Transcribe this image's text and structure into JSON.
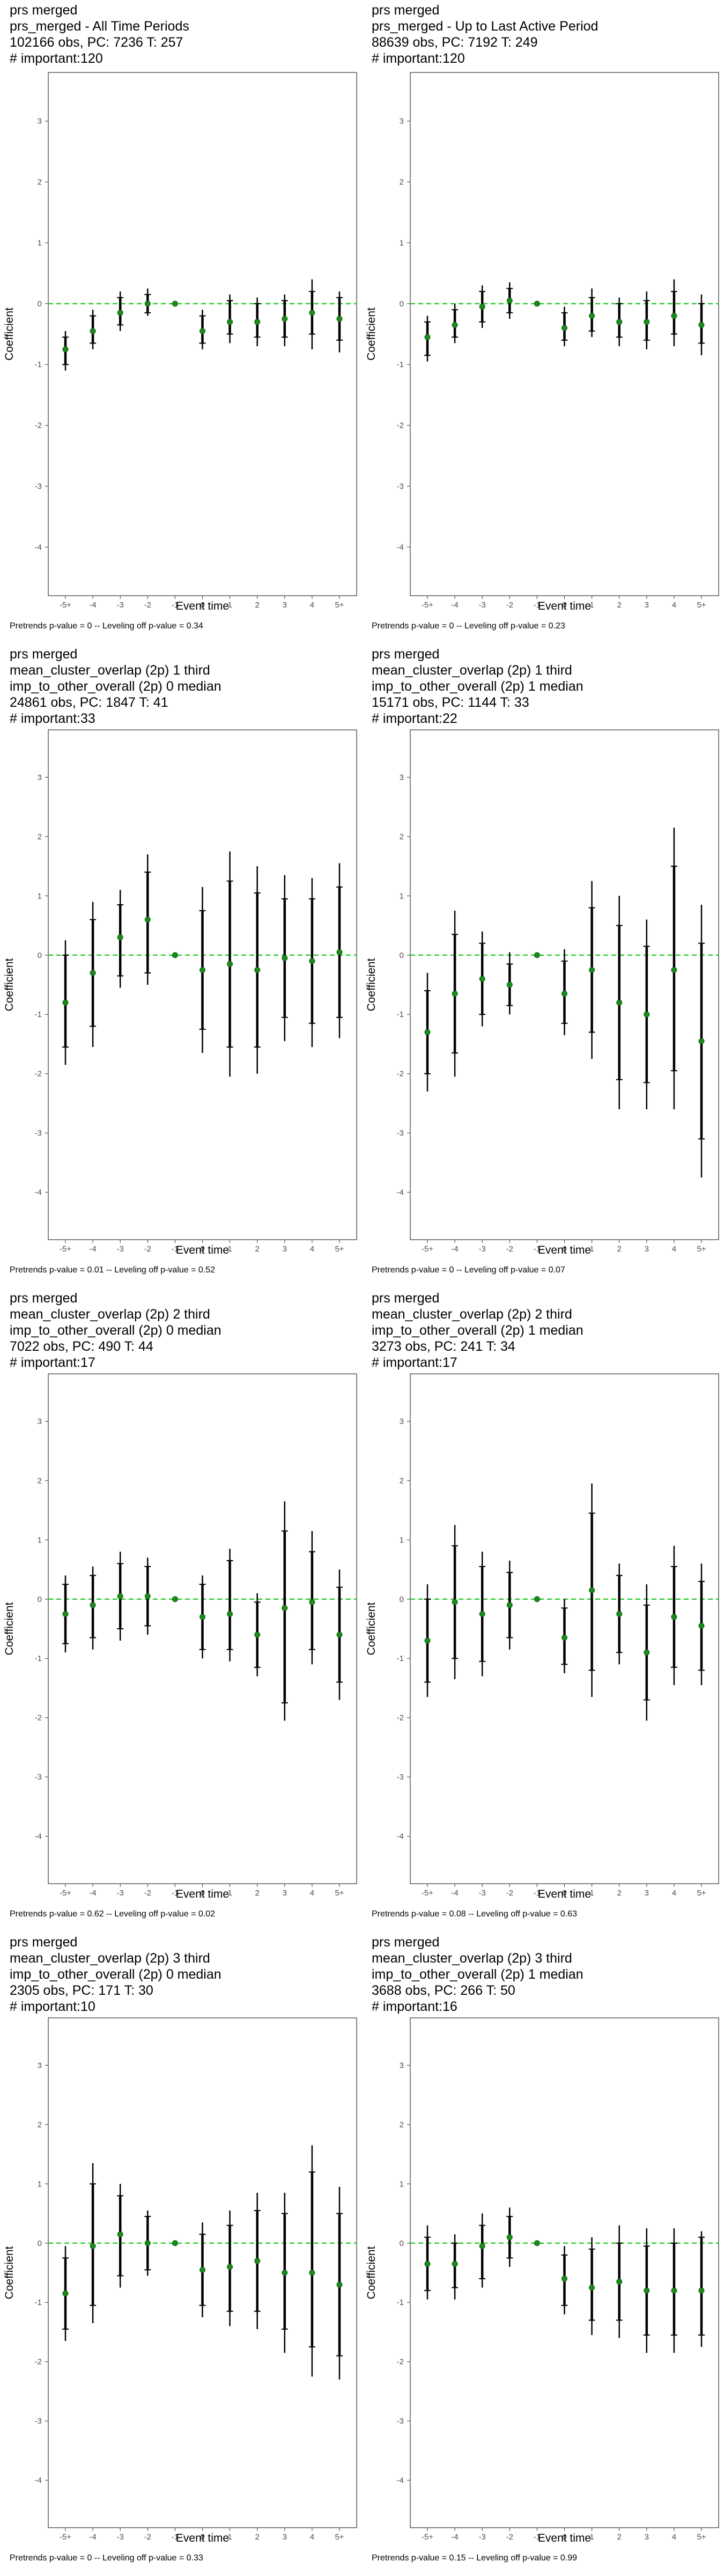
{
  "chart_data": [
    {
      "type": "scatter",
      "title_lines": [
        "prs merged",
        "prs_merged - All Time Periods",
        "102166 obs, PC: 7236 T: 257",
        "# important:120"
      ],
      "xlabel": "Event time",
      "ylabel": "Coefficient",
      "categories": [
        "-5+",
        "-4",
        "-3",
        "-2",
        "-1",
        "0",
        "1",
        "2",
        "3",
        "4",
        "5+"
      ],
      "yticks": [
        -4,
        -3,
        -2,
        -1,
        0,
        1,
        2,
        3
      ],
      "ylim": [
        -4.8,
        3.8
      ],
      "reference_line": 0,
      "estimate": [
        -0.75,
        -0.45,
        -0.15,
        0.0,
        0.0,
        -0.45,
        -0.3,
        -0.3,
        -0.25,
        -0.15,
        -0.25
      ],
      "ci_inner": [
        [
          -1.0,
          -0.55
        ],
        [
          -0.65,
          -0.2
        ],
        [
          -0.35,
          0.1
        ],
        [
          -0.15,
          0.15
        ],
        [
          0,
          0
        ],
        [
          -0.65,
          -0.2
        ],
        [
          -0.5,
          0.05
        ],
        [
          -0.55,
          0.0
        ],
        [
          -0.55,
          0.05
        ],
        [
          -0.5,
          0.2
        ],
        [
          -0.6,
          0.1
        ]
      ],
      "ci_outer": [
        [
          -1.1,
          -0.45
        ],
        [
          -0.75,
          -0.1
        ],
        [
          -0.45,
          0.2
        ],
        [
          -0.2,
          0.25
        ],
        [
          0,
          0
        ],
        [
          -0.75,
          -0.1
        ],
        [
          -0.65,
          0.15
        ],
        [
          -0.7,
          0.1
        ],
        [
          -0.7,
          0.15
        ],
        [
          -0.75,
          0.4
        ],
        [
          -0.8,
          0.2
        ]
      ],
      "footer": "Pretrends p-value = 0 -- Leveling off p-value = 0.34",
      "colors": {
        "point": "#1a8c1a",
        "ref": "#33cc33",
        "bar": "#000000"
      }
    },
    {
      "type": "scatter",
      "title_lines": [
        "prs merged",
        "prs_merged - Up to Last Active Period",
        "88639 obs, PC: 7192 T: 249",
        "# important:120"
      ],
      "xlabel": "Event time",
      "ylabel": "Coefficient",
      "categories": [
        "-5+",
        "-4",
        "-3",
        "-2",
        "-1",
        "0",
        "1",
        "2",
        "3",
        "4",
        "5+"
      ],
      "yticks": [
        -4,
        -3,
        -2,
        -1,
        0,
        1,
        2,
        3
      ],
      "ylim": [
        -4.8,
        3.8
      ],
      "reference_line": 0,
      "estimate": [
        -0.55,
        -0.35,
        -0.05,
        0.05,
        0.0,
        -0.4,
        -0.2,
        -0.3,
        -0.3,
        -0.2,
        -0.35
      ],
      "ci_inner": [
        [
          -0.85,
          -0.3
        ],
        [
          -0.55,
          -0.1
        ],
        [
          -0.3,
          0.2
        ],
        [
          -0.15,
          0.25
        ],
        [
          0,
          0
        ],
        [
          -0.6,
          -0.15
        ],
        [
          -0.45,
          0.1
        ],
        [
          -0.55,
          0.0
        ],
        [
          -0.6,
          0.05
        ],
        [
          -0.5,
          0.2
        ],
        [
          -0.65,
          0.0
        ]
      ],
      "ci_outer": [
        [
          -0.95,
          -0.2
        ],
        [
          -0.65,
          0.0
        ],
        [
          -0.4,
          0.3
        ],
        [
          -0.25,
          0.35
        ],
        [
          0,
          0
        ],
        [
          -0.7,
          -0.05
        ],
        [
          -0.55,
          0.25
        ],
        [
          -0.7,
          0.1
        ],
        [
          -0.75,
          0.2
        ],
        [
          -0.7,
          0.4
        ],
        [
          -0.85,
          0.15
        ]
      ],
      "footer": "Pretrends p-value = 0 -- Leveling off p-value = 0.23",
      "colors": {
        "point": "#1a8c1a",
        "ref": "#33cc33",
        "bar": "#000000"
      }
    },
    {
      "type": "scatter",
      "title_lines": [
        "prs merged",
        "mean_cluster_overlap (2p) 1 third",
        "imp_to_other_overall (2p) 0 median",
        "24861 obs, PC: 1847 T: 41",
        "# important:33"
      ],
      "xlabel": "Event time",
      "ylabel": "Coefficient",
      "categories": [
        "-5+",
        "-4",
        "-3",
        "-2",
        "-1",
        "0",
        "1",
        "2",
        "3",
        "4",
        "5+"
      ],
      "yticks": [
        -4,
        -3,
        -2,
        -1,
        0,
        1,
        2,
        3
      ],
      "ylim": [
        -4.8,
        3.8
      ],
      "reference_line": 0,
      "estimate": [
        -0.8,
        -0.3,
        0.3,
        0.6,
        0.0,
        -0.25,
        -0.15,
        -0.25,
        -0.05,
        -0.1,
        0.05
      ],
      "ci_inner": [
        [
          -1.55,
          0.0
        ],
        [
          -1.2,
          0.6
        ],
        [
          -0.35,
          0.85
        ],
        [
          -0.3,
          1.4
        ],
        [
          0,
          0
        ],
        [
          -1.25,
          0.75
        ],
        [
          -1.55,
          1.25
        ],
        [
          -1.55,
          1.05
        ],
        [
          -1.05,
          0.95
        ],
        [
          -1.15,
          0.95
        ],
        [
          -1.05,
          1.15
        ]
      ],
      "ci_outer": [
        [
          -1.85,
          0.25
        ],
        [
          -1.55,
          0.9
        ],
        [
          -0.55,
          1.1
        ],
        [
          -0.5,
          1.7
        ],
        [
          0,
          0
        ],
        [
          -1.65,
          1.15
        ],
        [
          -2.05,
          1.75
        ],
        [
          -2.0,
          1.5
        ],
        [
          -1.45,
          1.35
        ],
        [
          -1.55,
          1.3
        ],
        [
          -1.4,
          1.55
        ]
      ],
      "footer": "Pretrends p-value = 0.01 -- Leveling off p-value = 0.52",
      "colors": {
        "point": "#1a8c1a",
        "ref": "#33cc33",
        "bar": "#000000"
      }
    },
    {
      "type": "scatter",
      "title_lines": [
        "prs merged",
        "mean_cluster_overlap (2p) 1 third",
        "imp_to_other_overall (2p) 1 median",
        "15171 obs, PC: 1144 T: 33",
        "# important:22"
      ],
      "xlabel": "Event time",
      "ylabel": "Coefficient",
      "categories": [
        "-5+",
        "-4",
        "-3",
        "-2",
        "-1",
        "0",
        "1",
        "2",
        "3",
        "4",
        "5+"
      ],
      "yticks": [
        -4,
        -3,
        -2,
        -1,
        0,
        1,
        2,
        3
      ],
      "ylim": [
        -4.8,
        3.8
      ],
      "reference_line": 0,
      "estimate": [
        -1.3,
        -0.65,
        -0.4,
        -0.5,
        0.0,
        -0.65,
        -0.25,
        -0.8,
        -1.0,
        -0.25,
        -1.45
      ],
      "ci_inner": [
        [
          -2.0,
          -0.6
        ],
        [
          -1.65,
          0.35
        ],
        [
          -1.0,
          0.2
        ],
        [
          -0.85,
          -0.15
        ],
        [
          0,
          0
        ],
        [
          -1.15,
          -0.1
        ],
        [
          -1.3,
          0.8
        ],
        [
          -2.1,
          0.5
        ],
        [
          -2.15,
          0.15
        ],
        [
          -1.95,
          1.5
        ],
        [
          -3.1,
          0.2
        ]
      ],
      "ci_outer": [
        [
          -2.3,
          -0.3
        ],
        [
          -2.05,
          0.75
        ],
        [
          -1.2,
          0.4
        ],
        [
          -1.0,
          0.05
        ],
        [
          0,
          0
        ],
        [
          -1.35,
          0.1
        ],
        [
          -1.75,
          1.25
        ],
        [
          -2.6,
          1.0
        ],
        [
          -2.6,
          0.6
        ],
        [
          -2.6,
          2.15
        ],
        [
          -3.75,
          0.85
        ]
      ],
      "footer": "Pretrends p-value = 0 -- Leveling off p-value = 0.07",
      "colors": {
        "point": "#1a8c1a",
        "ref": "#33cc33",
        "bar": "#000000"
      }
    },
    {
      "type": "scatter",
      "title_lines": [
        "prs merged",
        "mean_cluster_overlap (2p) 2 third",
        "imp_to_other_overall (2p) 0 median",
        "7022 obs, PC: 490 T: 44",
        "# important:17"
      ],
      "xlabel": "Event time",
      "ylabel": "Coefficient",
      "categories": [
        "-5+",
        "-4",
        "-3",
        "-2",
        "-1",
        "0",
        "1",
        "2",
        "3",
        "4",
        "5+"
      ],
      "yticks": [
        -4,
        -3,
        -2,
        -1,
        0,
        1,
        2,
        3
      ],
      "ylim": [
        -4.8,
        3.8
      ],
      "reference_line": 0,
      "estimate": [
        -0.25,
        -0.1,
        0.05,
        0.05,
        0.0,
        -0.3,
        -0.25,
        -0.6,
        -0.15,
        -0.05,
        -0.6
      ],
      "ci_inner": [
        [
          -0.75,
          0.25
        ],
        [
          -0.65,
          0.4
        ],
        [
          -0.5,
          0.6
        ],
        [
          -0.45,
          0.55
        ],
        [
          0,
          0
        ],
        [
          -0.85,
          0.25
        ],
        [
          -0.85,
          0.65
        ],
        [
          -1.15,
          -0.05
        ],
        [
          -1.75,
          1.15
        ],
        [
          -0.85,
          0.8
        ],
        [
          -1.4,
          0.2
        ]
      ],
      "ci_outer": [
        [
          -0.9,
          0.4
        ],
        [
          -0.85,
          0.55
        ],
        [
          -0.7,
          0.8
        ],
        [
          -0.6,
          0.7
        ],
        [
          0,
          0
        ],
        [
          -1.0,
          0.4
        ],
        [
          -1.05,
          0.85
        ],
        [
          -1.3,
          0.1
        ],
        [
          -2.05,
          1.65
        ],
        [
          -1.1,
          1.15
        ],
        [
          -1.7,
          0.5
        ]
      ],
      "footer": "Pretrends p-value = 0.62 -- Leveling off p-value = 0.02",
      "colors": {
        "point": "#1a8c1a",
        "ref": "#33cc33",
        "bar": "#000000"
      }
    },
    {
      "type": "scatter",
      "title_lines": [
        "prs merged",
        "mean_cluster_overlap (2p) 2 third",
        "imp_to_other_overall (2p) 1 median",
        "3273 obs, PC: 241 T: 34",
        "# important:17"
      ],
      "xlabel": "Event time",
      "ylabel": "Coefficient",
      "categories": [
        "-5+",
        "-4",
        "-3",
        "-2",
        "-1",
        "0",
        "1",
        "2",
        "3",
        "4",
        "5+"
      ],
      "yticks": [
        -4,
        -3,
        -2,
        -1,
        0,
        1,
        2,
        3
      ],
      "ylim": [
        -4.8,
        3.8
      ],
      "reference_line": 0,
      "estimate": [
        -0.7,
        -0.05,
        -0.25,
        -0.1,
        0.0,
        -0.65,
        0.15,
        -0.25,
        -0.9,
        -0.3,
        -0.45
      ],
      "ci_inner": [
        [
          -1.4,
          0.0
        ],
        [
          -1.0,
          0.9
        ],
        [
          -1.05,
          0.55
        ],
        [
          -0.65,
          0.45
        ],
        [
          0,
          0
        ],
        [
          -1.1,
          -0.15
        ],
        [
          -1.2,
          1.45
        ],
        [
          -0.9,
          0.4
        ],
        [
          -1.7,
          -0.1
        ],
        [
          -1.15,
          0.55
        ],
        [
          -1.2,
          0.3
        ]
      ],
      "ci_outer": [
        [
          -1.65,
          0.25
        ],
        [
          -1.35,
          1.25
        ],
        [
          -1.3,
          0.8
        ],
        [
          -0.85,
          0.65
        ],
        [
          0,
          0
        ],
        [
          -1.25,
          0.0
        ],
        [
          -1.65,
          1.95
        ],
        [
          -1.1,
          0.6
        ],
        [
          -2.05,
          0.25
        ],
        [
          -1.45,
          0.9
        ],
        [
          -1.45,
          0.6
        ]
      ],
      "footer": "Pretrends p-value = 0.08 -- Leveling off p-value = 0.63",
      "colors": {
        "point": "#1a8c1a",
        "ref": "#33cc33",
        "bar": "#000000"
      }
    },
    {
      "type": "scatter",
      "title_lines": [
        "prs merged",
        "mean_cluster_overlap (2p) 3 third",
        "imp_to_other_overall (2p) 0 median",
        "2305 obs, PC: 171 T: 30",
        "# important:10"
      ],
      "xlabel": "Event time",
      "ylabel": "Coefficient",
      "categories": [
        "-5+",
        "-4",
        "-3",
        "-2",
        "-1",
        "0",
        "1",
        "2",
        "3",
        "4",
        "5+"
      ],
      "yticks": [
        -4,
        -3,
        -2,
        -1,
        0,
        1,
        2,
        3
      ],
      "ylim": [
        -4.8,
        3.8
      ],
      "reference_line": 0,
      "estimate": [
        -0.85,
        -0.05,
        0.15,
        0.0,
        0.0,
        -0.45,
        -0.4,
        -0.3,
        -0.5,
        -0.5,
        -0.7
      ],
      "ci_inner": [
        [
          -1.45,
          -0.25
        ],
        [
          -1.05,
          1.0
        ],
        [
          -0.55,
          0.8
        ],
        [
          -0.45,
          0.45
        ],
        [
          0,
          0
        ],
        [
          -1.05,
          0.15
        ],
        [
          -1.15,
          0.3
        ],
        [
          -1.15,
          0.55
        ],
        [
          -1.45,
          0.5
        ],
        [
          -1.75,
          1.2
        ],
        [
          -1.9,
          0.5
        ]
      ],
      "ci_outer": [
        [
          -1.65,
          -0.05
        ],
        [
          -1.35,
          1.35
        ],
        [
          -0.75,
          1.0
        ],
        [
          -0.55,
          0.55
        ],
        [
          0,
          0
        ],
        [
          -1.25,
          0.35
        ],
        [
          -1.4,
          0.55
        ],
        [
          -1.45,
          0.85
        ],
        [
          -1.85,
          0.85
        ],
        [
          -2.25,
          1.65
        ],
        [
          -2.3,
          0.95
        ]
      ],
      "footer": "Pretrends p-value = 0 -- Leveling off p-value = 0.33",
      "colors": {
        "point": "#1a8c1a",
        "ref": "#33cc33",
        "bar": "#000000"
      }
    },
    {
      "type": "scatter",
      "title_lines": [
        "prs merged",
        "mean_cluster_overlap (2p) 3 third",
        "imp_to_other_overall (2p) 1 median",
        "3688 obs, PC: 266 T: 50",
        "# important:16"
      ],
      "xlabel": "Event time",
      "ylabel": "Coefficient",
      "categories": [
        "-5+",
        "-4",
        "-3",
        "-2",
        "-1",
        "0",
        "1",
        "2",
        "3",
        "4",
        "5+"
      ],
      "yticks": [
        -4,
        -3,
        -2,
        -1,
        0,
        1,
        2,
        3
      ],
      "ylim": [
        -4.8,
        3.8
      ],
      "reference_line": 0,
      "estimate": [
        -0.35,
        -0.35,
        -0.05,
        0.1,
        0.0,
        -0.6,
        -0.75,
        -0.65,
        -0.8,
        -0.8,
        -0.8
      ],
      "ci_inner": [
        [
          -0.8,
          0.1
        ],
        [
          -0.75,
          0.0
        ],
        [
          -0.6,
          0.3
        ],
        [
          -0.25,
          0.45
        ],
        [
          0,
          0
        ],
        [
          -1.05,
          -0.2
        ],
        [
          -1.3,
          -0.1
        ],
        [
          -1.3,
          0.0
        ],
        [
          -1.55,
          -0.05
        ],
        [
          -1.55,
          0.0
        ],
        [
          -1.55,
          0.1
        ]
      ],
      "ci_outer": [
        [
          -0.95,
          0.3
        ],
        [
          -0.95,
          0.15
        ],
        [
          -0.75,
          0.5
        ],
        [
          -0.4,
          0.6
        ],
        [
          0,
          0
        ],
        [
          -1.2,
          -0.05
        ],
        [
          -1.55,
          0.1
        ],
        [
          -1.6,
          0.3
        ],
        [
          -1.85,
          0.25
        ],
        [
          -1.85,
          0.25
        ],
        [
          -1.75,
          0.2
        ]
      ],
      "footer": "Pretrends p-value = 0.15 -- Leveling off p-value = 0.99",
      "colors": {
        "point": "#1a8c1a",
        "ref": "#33cc33",
        "bar": "#000000"
      }
    }
  ]
}
